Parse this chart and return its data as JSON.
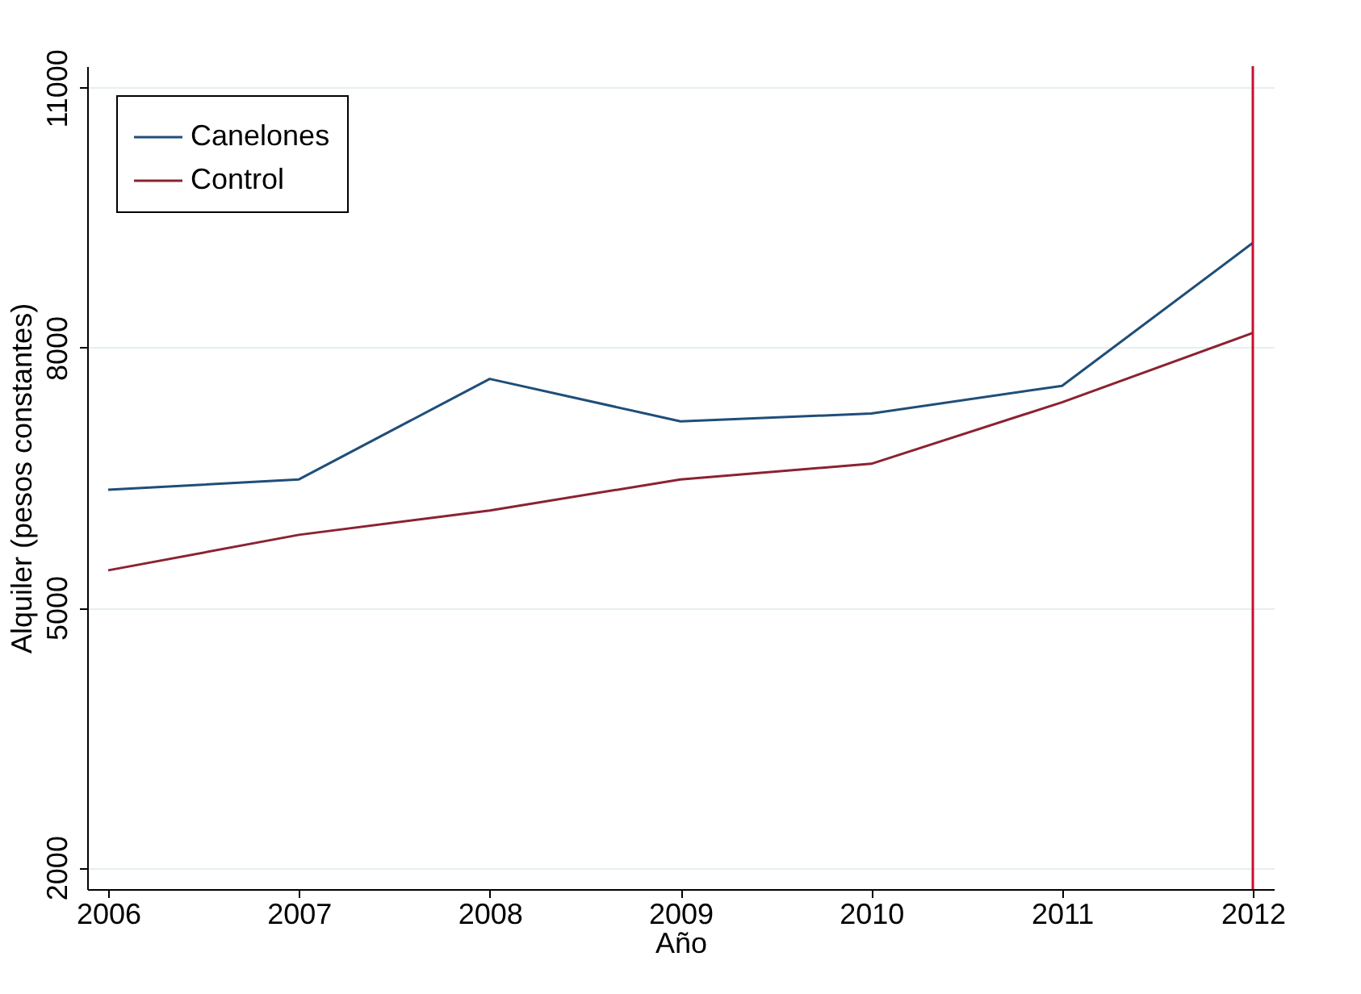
{
  "chart_data": {
    "type": "line",
    "xlabel": "Año",
    "ylabel": "Alquiler (pesos constantes)",
    "x": [
      2006,
      2007,
      2008,
      2009,
      2010,
      2011,
      2012
    ],
    "series": [
      {
        "name": "Canelones",
        "color": "#1f4e79",
        "values": [
          6360,
          6480,
          7640,
          7150,
          7240,
          7560,
          9210
        ]
      },
      {
        "name": "Control",
        "color": "#8b2232",
        "values": [
          5430,
          5840,
          6120,
          6480,
          6660,
          7370,
          8170
        ]
      }
    ],
    "xlim": [
      2005.89,
      2012.11
    ],
    "xticks": [
      2006,
      2007,
      2008,
      2009,
      2010,
      2011,
      2012
    ],
    "ylim": [
      1750,
      11250
    ],
    "yticks": [
      2000,
      5000,
      8000,
      11000
    ],
    "ref_lines": [
      {
        "axis": "x",
        "value": 2012,
        "color": "#c8102e"
      }
    ],
    "grid": "y",
    "legend": "top left",
    "marker": "none",
    "line_style": "solid"
  }
}
